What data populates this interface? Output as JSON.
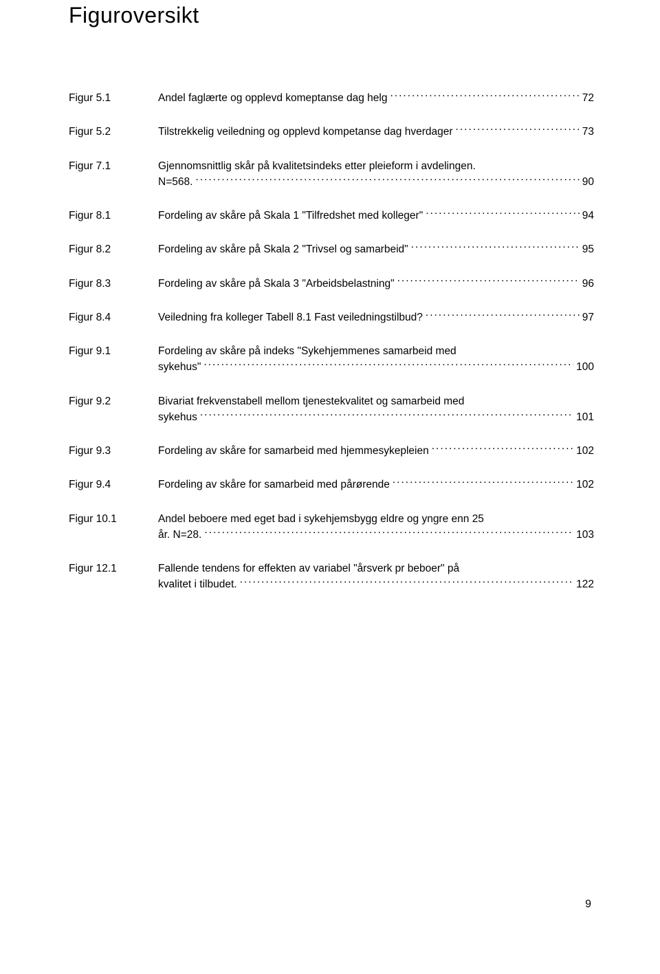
{
  "title": "Figuroversikt",
  "page_number": "9",
  "entries": [
    {
      "id": "Figur 5.1",
      "lines": [
        {
          "text": "Andel faglærte og opplevd komeptanse dag helg",
          "page": "72"
        }
      ]
    },
    {
      "id": "Figur 5.2",
      "lines": [
        {
          "text": "Tilstrekkelig veiledning og opplevd kompetanse dag hverdager",
          "page": "73"
        }
      ]
    },
    {
      "id": "Figur 7.1",
      "lines": [
        {
          "text": "Gjennomsnittlig skår på kvalitetsindeks etter pleieform i avdelingen."
        },
        {
          "text": "N=568.",
          "page": "90"
        }
      ]
    },
    {
      "id": "Figur 8.1",
      "lines": [
        {
          "text": "Fordeling av skåre på Skala 1 \"Tilfredshet med kolleger\"",
          "page": "94"
        }
      ]
    },
    {
      "id": "Figur 8.2",
      "lines": [
        {
          "text": "Fordeling av skåre på Skala 2 \"Trivsel og samarbeid\"",
          "page": "95"
        }
      ]
    },
    {
      "id": "Figur 8.3",
      "lines": [
        {
          "text": "Fordeling av skåre på Skala 3 \"Arbeidsbelastning\"",
          "page": "96"
        }
      ]
    },
    {
      "id": "Figur 8.4",
      "lines": [
        {
          "text": "Veiledning fra kolleger  Tabell 8.1 Fast veiledningstilbud?",
          "page": "97"
        }
      ]
    },
    {
      "id": "Figur 9.1",
      "lines": [
        {
          "text": "Fordeling av skåre på indeks \"Sykehjemmenes samarbeid med"
        },
        {
          "text": "sykehus\"",
          "page": "100"
        }
      ]
    },
    {
      "id": "Figur 9.2",
      "lines": [
        {
          "text": "Bivariat frekvenstabell mellom tjenestekvalitet og samarbeid med"
        },
        {
          "text": "sykehus",
          "page": "101"
        }
      ]
    },
    {
      "id": "Figur 9.3",
      "lines": [
        {
          "text": "Fordeling av skåre for  samarbeid med  hjemmesykepleien",
          "page": "102"
        }
      ]
    },
    {
      "id": "Figur 9.4",
      "lines": [
        {
          "text": "Fordeling av skåre for  samarbeid  med pårørende",
          "page": "102"
        }
      ]
    },
    {
      "id": "Figur 10.1",
      "lines": [
        {
          "text": "Andel beboere med eget bad i sykehjemsbygg eldre og yngre enn 25"
        },
        {
          "text": "år. N=28.",
          "page": "103"
        }
      ]
    },
    {
      "id": "Figur 12.1",
      "lines": [
        {
          "text": "Fallende  tendens for effekten av variabel \"årsverk pr beboer\" på"
        },
        {
          "text": "kvalitet i tilbudet.",
          "page": "122"
        }
      ]
    }
  ]
}
